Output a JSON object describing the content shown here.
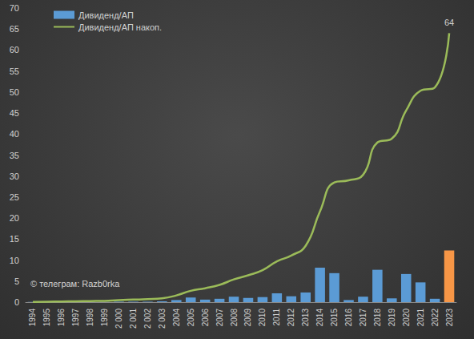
{
  "chart_data": {
    "type": "bar",
    "categories": [
      "1994",
      "1995",
      "1996",
      "1997",
      "1998",
      "1999",
      "2 000",
      "2 001",
      "2 002",
      "2 003",
      "2004",
      "2005",
      "2006",
      "2007",
      "2008",
      "2009",
      "2010",
      "2011",
      "2012",
      "2013",
      "2014",
      "2015",
      "2016",
      "2017",
      "2018",
      "2019",
      "2020",
      "2021",
      "2022",
      "2023"
    ],
    "series": [
      {
        "name": "Дивиденд/АП",
        "type": "bar",
        "colors": [
          "#5b9bd5",
          "#5b9bd5",
          "#5b9bd5",
          "#5b9bd5",
          "#5b9bd5",
          "#5b9bd5",
          "#5b9bd5",
          "#5b9bd5",
          "#5b9bd5",
          "#5b9bd5",
          "#5b9bd5",
          "#5b9bd5",
          "#5b9bd5",
          "#5b9bd5",
          "#5b9bd5",
          "#5b9bd5",
          "#5b9bd5",
          "#5b9bd5",
          "#5b9bd5",
          "#5b9bd5",
          "#5b9bd5",
          "#5b9bd5",
          "#5b9bd5",
          "#5b9bd5",
          "#5b9bd5",
          "#5b9bd5",
          "#5b9bd5",
          "#5b9bd5",
          "#5b9bd5",
          "#f79646"
        ],
        "color": "#5b9bd5",
        "values": [
          0.05,
          0.05,
          0.05,
          0.05,
          0.05,
          0.05,
          0.1,
          0.1,
          0.1,
          0.2,
          0.5,
          1.1,
          0.6,
          0.8,
          1.3,
          1.0,
          1.2,
          2.1,
          1.4,
          2.3,
          8.2,
          6.9,
          0.5,
          1.3,
          7.7,
          0.9,
          6.7,
          4.7,
          0.8,
          12.3
        ]
      },
      {
        "name": "Дивиденд/АП накоп.",
        "type": "line",
        "color": "#9bbb59",
        "values": [
          0.05,
          0.1,
          0.15,
          0.2,
          0.25,
          0.3,
          0.5,
          0.6,
          0.7,
          0.9,
          1.6,
          2.7,
          3.3,
          4.1,
          5.4,
          6.4,
          7.6,
          9.7,
          11.1,
          13.4,
          21.6,
          28.5,
          29.0,
          30.3,
          38.0,
          38.9,
          45.6,
          50.3,
          51.1,
          64
        ],
        "value_labels": [
          null,
          null,
          null,
          null,
          null,
          null,
          null,
          null,
          null,
          null,
          null,
          null,
          null,
          null,
          null,
          null,
          null,
          null,
          null,
          null,
          null,
          null,
          null,
          null,
          null,
          null,
          null,
          null,
          null,
          "64"
        ]
      }
    ],
    "ylim": [
      0,
      70
    ],
    "yticks": [
      0,
      5,
      10,
      15,
      20,
      25,
      30,
      35,
      40,
      45,
      50,
      55,
      60,
      65,
      70
    ],
    "grid": false,
    "legend": "upper left",
    "annotations": [
      {
        "text": "© телеграм: Razb0rka"
      }
    ]
  }
}
